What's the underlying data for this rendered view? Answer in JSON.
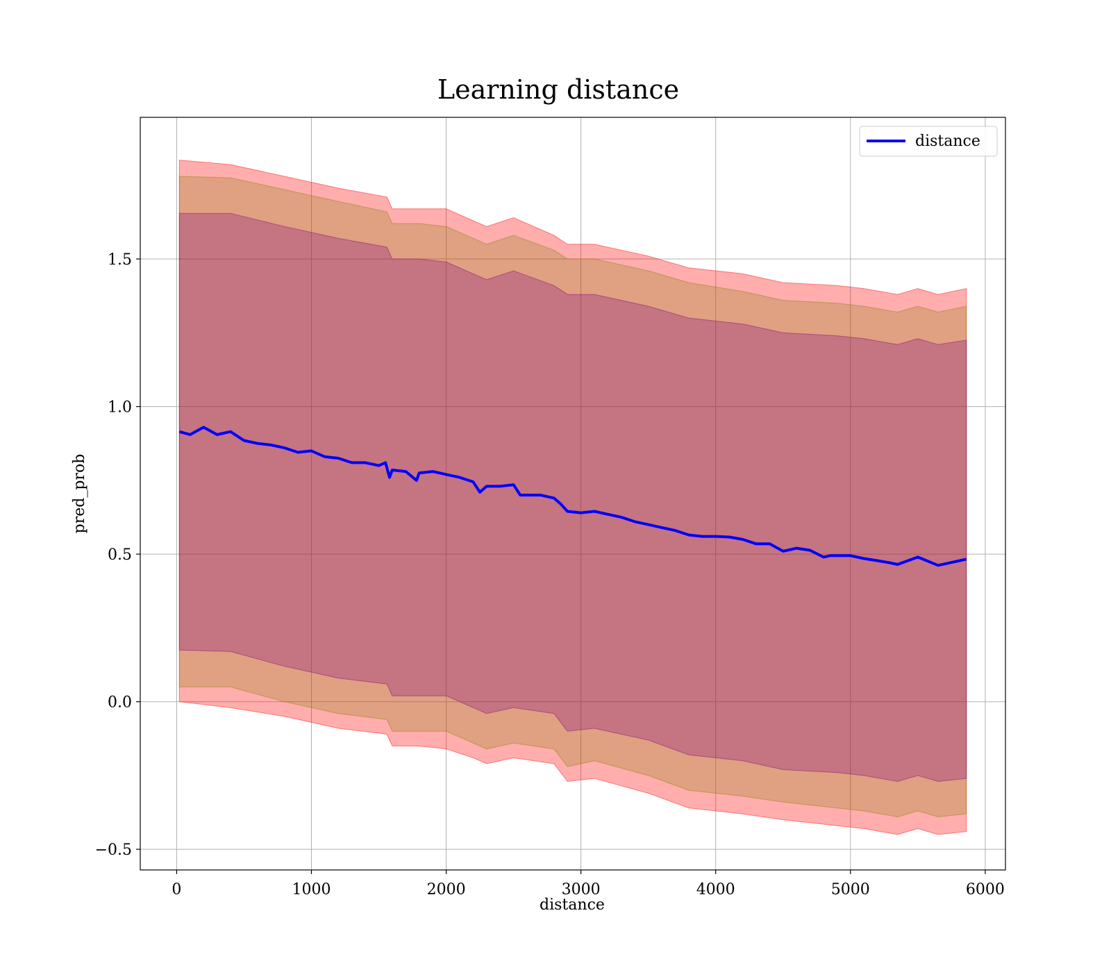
{
  "chart_data": {
    "type": "line",
    "title": "Learning distance",
    "xlabel": "distance",
    "ylabel": "pred_prob",
    "xlim": [
      -270,
      6150
    ],
    "ylim": [
      -0.57,
      1.98
    ],
    "xticks": [
      0,
      1000,
      2000,
      3000,
      4000,
      5000,
      6000
    ],
    "xtick_labels": [
      "0",
      "1000",
      "2000",
      "3000",
      "4000",
      "5000",
      "6000"
    ],
    "yticks": [
      -0.5,
      0.0,
      0.5,
      1.0,
      1.5
    ],
    "ytick_labels": [
      "−0.5",
      "0.0",
      "0.5",
      "1.0",
      "1.5"
    ],
    "grid": true,
    "legend": {
      "placement": "top-right",
      "entries": [
        "distance"
      ]
    },
    "series": [
      {
        "name": "distance",
        "color": "#0000ff",
        "x": [
          20,
          100,
          200,
          300,
          400,
          500,
          600,
          700,
          800,
          900,
          1000,
          1100,
          1200,
          1300,
          1400,
          1500,
          1550,
          1580,
          1600,
          1700,
          1780,
          1800,
          1900,
          2000,
          2100,
          2200,
          2250,
          2300,
          2400,
          2500,
          2550,
          2600,
          2700,
          2800,
          2850,
          2900,
          3000,
          3100,
          3200,
          3300,
          3400,
          3500,
          3600,
          3700,
          3800,
          3900,
          4000,
          4100,
          4200,
          4300,
          4400,
          4500,
          4600,
          4700,
          4800,
          4850,
          4900,
          5000,
          5100,
          5200,
          5300,
          5350,
          5500,
          5650,
          5860
        ],
        "y": [
          0.915,
          0.905,
          0.93,
          0.905,
          0.915,
          0.885,
          0.875,
          0.87,
          0.86,
          0.845,
          0.85,
          0.83,
          0.825,
          0.81,
          0.81,
          0.8,
          0.81,
          0.76,
          0.785,
          0.78,
          0.75,
          0.775,
          0.78,
          0.77,
          0.76,
          0.745,
          0.71,
          0.73,
          0.73,
          0.735,
          0.7,
          0.7,
          0.7,
          0.69,
          0.67,
          0.645,
          0.64,
          0.645,
          0.635,
          0.625,
          0.61,
          0.6,
          0.59,
          0.58,
          0.565,
          0.56,
          0.56,
          0.558,
          0.55,
          0.535,
          0.535,
          0.51,
          0.52,
          0.513,
          0.49,
          0.495,
          0.495,
          0.495,
          0.485,
          0.478,
          0.47,
          0.465,
          0.49,
          0.462,
          0.483
        ]
      }
    ],
    "bands": [
      {
        "color": "#ff0000",
        "opacity": 0.32,
        "x": [
          20,
          400,
          800,
          1200,
          1560,
          1600,
          1800,
          2000,
          2200,
          2300,
          2500,
          2800,
          2900,
          3100,
          3500,
          3800,
          4200,
          4500,
          4900,
          5100,
          5350,
          5500,
          5650,
          5860
        ],
        "upper": [
          1.835,
          1.82,
          1.78,
          1.74,
          1.71,
          1.67,
          1.67,
          1.67,
          1.63,
          1.61,
          1.64,
          1.58,
          1.55,
          1.55,
          1.51,
          1.47,
          1.45,
          1.42,
          1.41,
          1.4,
          1.38,
          1.4,
          1.38,
          1.4
        ],
        "lower": [
          0.0,
          -0.02,
          -0.05,
          -0.09,
          -0.11,
          -0.15,
          -0.15,
          -0.16,
          -0.19,
          -0.21,
          -0.19,
          -0.21,
          -0.27,
          -0.26,
          -0.31,
          -0.36,
          -0.38,
          -0.4,
          -0.42,
          -0.43,
          -0.45,
          -0.43,
          -0.45,
          -0.44
        ]
      },
      {
        "color": "#808000",
        "opacity": 0.25,
        "x": [
          20,
          400,
          800,
          1200,
          1560,
          1600,
          1800,
          2000,
          2200,
          2300,
          2500,
          2800,
          2900,
          3100,
          3500,
          3800,
          4200,
          4500,
          4900,
          5100,
          5350,
          5500,
          5650,
          5860
        ],
        "upper": [
          1.78,
          1.775,
          1.735,
          1.695,
          1.66,
          1.62,
          1.62,
          1.61,
          1.57,
          1.55,
          1.58,
          1.53,
          1.5,
          1.5,
          1.46,
          1.42,
          1.39,
          1.36,
          1.35,
          1.34,
          1.32,
          1.34,
          1.32,
          1.34
        ],
        "lower": [
          0.05,
          0.05,
          0.0,
          -0.04,
          -0.06,
          -0.1,
          -0.1,
          -0.1,
          -0.14,
          -0.16,
          -0.14,
          -0.16,
          -0.22,
          -0.2,
          -0.25,
          -0.3,
          -0.32,
          -0.34,
          -0.36,
          -0.37,
          -0.39,
          -0.37,
          -0.39,
          -0.38
        ]
      },
      {
        "color": "#800080",
        "opacity": 0.28,
        "x": [
          20,
          400,
          800,
          1200,
          1560,
          1600,
          1800,
          2000,
          2200,
          2300,
          2500,
          2800,
          2900,
          3100,
          3500,
          3800,
          4200,
          4500,
          4900,
          5100,
          5350,
          5500,
          5650,
          5860
        ],
        "upper": [
          1.655,
          1.655,
          1.61,
          1.57,
          1.54,
          1.5,
          1.5,
          1.49,
          1.45,
          1.43,
          1.46,
          1.41,
          1.38,
          1.38,
          1.34,
          1.3,
          1.28,
          1.25,
          1.24,
          1.23,
          1.21,
          1.23,
          1.21,
          1.225
        ],
        "lower": [
          0.175,
          0.17,
          0.12,
          0.08,
          0.06,
          0.02,
          0.02,
          0.02,
          -0.02,
          -0.04,
          -0.02,
          -0.04,
          -0.1,
          -0.09,
          -0.13,
          -0.18,
          -0.2,
          -0.23,
          -0.24,
          -0.25,
          -0.27,
          -0.25,
          -0.27,
          -0.26
        ]
      }
    ]
  }
}
